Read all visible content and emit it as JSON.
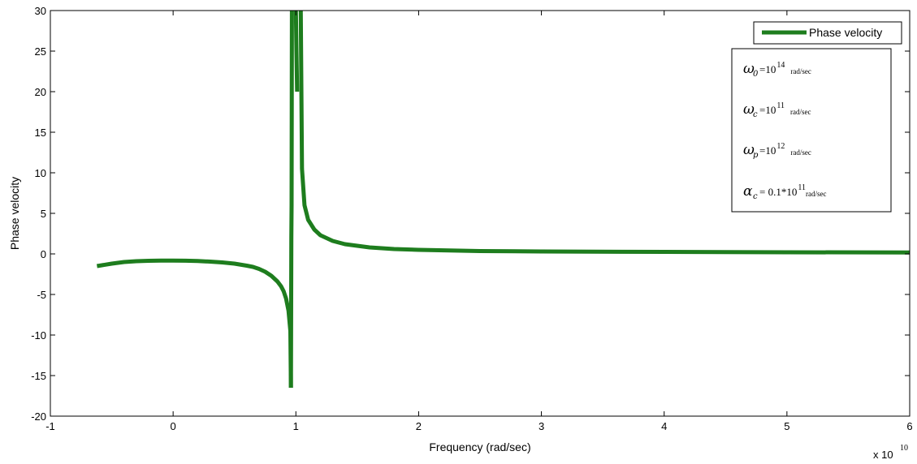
{
  "chart_data": {
    "type": "line",
    "xlabel": "Frequency (rad/sec)",
    "ylabel": "Phase velocity",
    "x_multiplier_label": "x 10",
    "x_multiplier_exponent": "10",
    "xlim": [
      -1,
      6
    ],
    "ylim": [
      -20,
      30
    ],
    "xticks": [
      -1,
      0,
      1,
      2,
      3,
      4,
      5,
      6
    ],
    "yticks": [
      -20,
      -15,
      -10,
      -5,
      0,
      5,
      10,
      15,
      20,
      25,
      30
    ],
    "grid": false,
    "legend_position": "top-right",
    "series": [
      {
        "name": "Phase velocity",
        "color": "#1e7d1e",
        "segments": [
          {
            "x": [
              -0.62,
              -0.5,
              -0.4,
              -0.3,
              -0.2,
              -0.1,
              0,
              0.1,
              0.2,
              0.3,
              0.4,
              0.5,
              0.6,
              0.65,
              0.7,
              0.75,
              0.8,
              0.85,
              0.88,
              0.9,
              0.92,
              0.94,
              0.955,
              0.96
            ],
            "y": [
              -1.5,
              -1.2,
              -1.0,
              -0.9,
              -0.85,
              -0.82,
              -0.82,
              -0.84,
              -0.88,
              -0.95,
              -1.05,
              -1.2,
              -1.45,
              -1.6,
              -1.85,
              -2.2,
              -2.7,
              -3.4,
              -4.0,
              -4.6,
              -5.5,
              -7.0,
              -9.5,
              -16.5
            ]
          },
          {
            "x": [
              0.96,
              0.963,
              0.965,
              0.968
            ],
            "y": [
              -16.5,
              2.0,
              6.0,
              30
            ]
          },
          {
            "x": [
              1.0,
              1.005,
              1.01
            ],
            "y": [
              30,
              25,
              20
            ]
          },
          {
            "x": [
              1.04,
              1.05,
              1.07,
              1.1,
              1.15,
              1.2,
              1.3,
              1.4,
              1.6,
              1.8,
              2.0,
              2.5,
              3.0,
              4.0,
              5.0,
              6.0
            ],
            "y": [
              30,
              10.5,
              6.0,
              4.2,
              3.0,
              2.3,
              1.6,
              1.2,
              0.8,
              0.6,
              0.5,
              0.35,
              0.3,
              0.25,
              0.2,
              0.18
            ]
          }
        ]
      }
    ]
  },
  "annotation": {
    "rows": [
      {
        "symbol": "ω",
        "sub": "0",
        "eq": "=10",
        "exp": "14",
        "unit": "rad/sec"
      },
      {
        "symbol": "ω",
        "sub": "c",
        "eq": "=10",
        "exp": "11",
        "unit": "rad/sec"
      },
      {
        "symbol": "ω",
        "sub": "p",
        "eq": "=10",
        "exp": "12",
        "unit": "rad/sec"
      },
      {
        "symbol": "α",
        "sub": "c",
        "eq": " = 0.1*10",
        "exp": "11",
        "unit": "rad/sec"
      }
    ]
  }
}
